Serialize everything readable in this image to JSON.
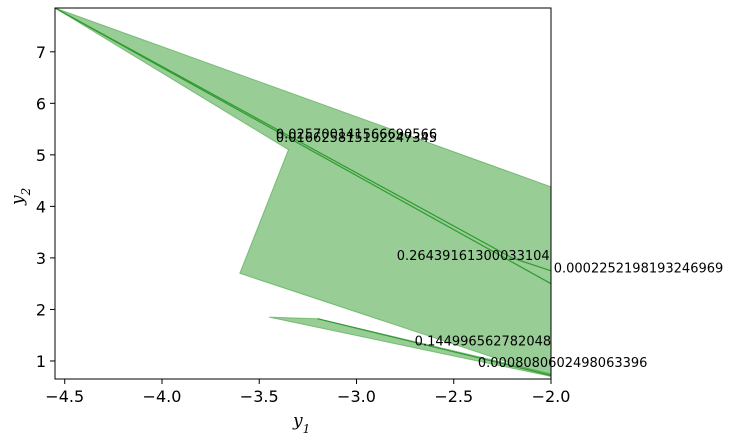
{
  "chart_data": {
    "type": "area",
    "xlabel": "y",
    "xlabel_sub": "1",
    "ylabel": "y",
    "ylabel_sub": "2",
    "xlim": [
      -4.55,
      -2.0
    ],
    "ylim": [
      0.65,
      7.85
    ],
    "xticks": [
      -4.5,
      -4.0,
      -3.5,
      -3.0,
      -2.5,
      -2.0
    ],
    "yticks": [
      1,
      2,
      3,
      4,
      5,
      6,
      7
    ],
    "xtick_labels": [
      "−4.5",
      "−4.0",
      "−3.5",
      "−3.0",
      "−2.5",
      "−2.0"
    ],
    "ytick_labels": [
      "1",
      "2",
      "3",
      "4",
      "5",
      "6",
      "7"
    ],
    "colors": {
      "fill": "#6cb86a",
      "edge": "#2f9a2f",
      "frame": "#000000"
    },
    "regions": [
      {
        "polygon": [
          [
            -4.55,
            7.85
          ],
          [
            -2.0,
            4.38
          ],
          [
            -2.0,
            0.7
          ],
          [
            -3.6,
            2.7
          ],
          [
            -3.35,
            5.1
          ]
        ]
      },
      {
        "polygon": [
          [
            -3.45,
            1.85
          ],
          [
            -2.0,
            0.7
          ],
          [
            -2.0,
            0.75
          ],
          [
            -3.2,
            1.82
          ]
        ]
      }
    ],
    "lines": [
      {
        "points": [
          [
            -4.55,
            7.85
          ],
          [
            -2.0,
            2.5
          ]
        ]
      },
      {
        "points": [
          [
            -4.55,
            7.85
          ],
          [
            -2.2,
            3.0
          ],
          [
            -2.0,
            2.75
          ]
        ]
      },
      {
        "points": [
          [
            -3.2,
            1.82
          ],
          [
            -2.0,
            0.72
          ]
        ]
      }
    ],
    "annotations": [
      {
        "text": "0.025700141566690566",
        "x": -3.0,
        "y": 5.32
      },
      {
        "text": "0.016625815192247345",
        "x": -3.0,
        "y": 5.25
      },
      {
        "text": "0.26439161300033104",
        "x": -2.4,
        "y": 2.96
      },
      {
        "text": "0.0002252198193246969",
        "x": -1.55,
        "y": 2.72
      },
      {
        "text": "0.144996562782048",
        "x": -2.35,
        "y": 1.3
      },
      {
        "text": "0.0008080602498063396",
        "x": -1.94,
        "y": 0.88
      }
    ]
  }
}
